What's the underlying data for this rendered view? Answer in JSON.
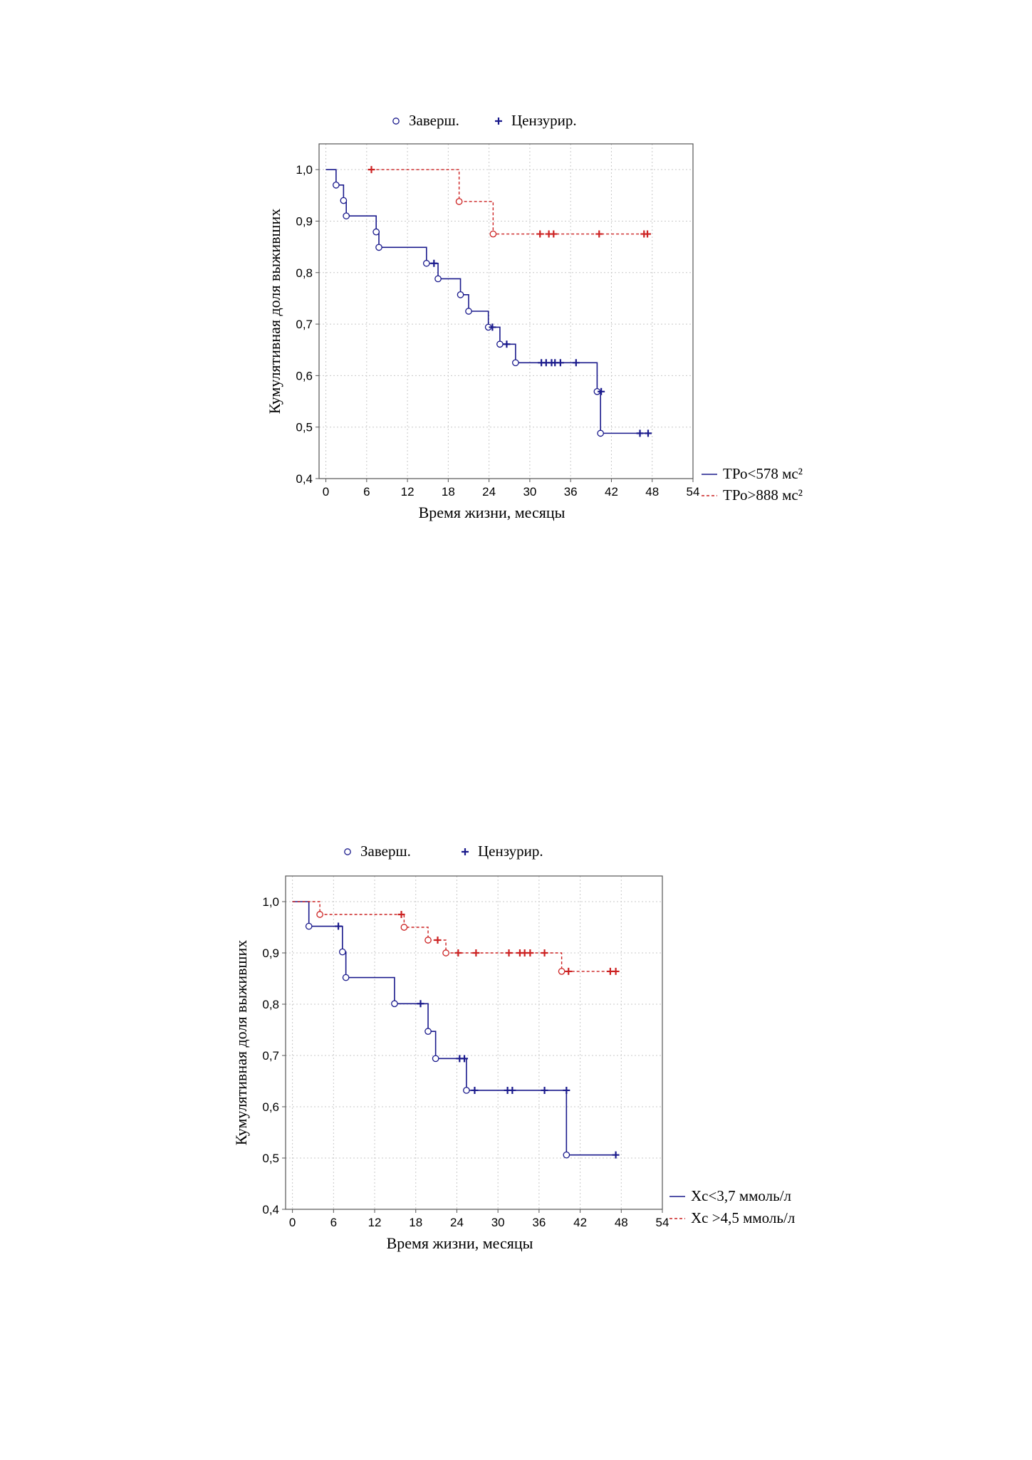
{
  "chart_data": [
    {
      "type": "line",
      "subtype": "kaplan-meier-step",
      "title": "",
      "xlabel": "Время жизни, месяцы",
      "ylabel": "Кумулятивная доля выживших",
      "xlim": [
        -1,
        54
      ],
      "ylim": [
        0.4,
        1.05
      ],
      "xticks": [
        0,
        6,
        12,
        18,
        24,
        30,
        36,
        42,
        48,
        54
      ],
      "xtick_labels": [
        "0",
        "6",
        "12",
        "18",
        "24",
        "30",
        "36",
        "42",
        "48",
        "54"
      ],
      "yticks": [
        0.4,
        0.5,
        0.6,
        0.7,
        0.8,
        0.9,
        1.0
      ],
      "ytick_labels": [
        "0,4",
        "0,5",
        "0,6",
        "0,7",
        "0,8",
        "0,9",
        "1,0"
      ],
      "grid": true,
      "marker_key": {
        "completed_label": "Заверш.",
        "censored_label": "Цензурир.",
        "placement": "top-center"
      },
      "legend_placement": "bottom-right",
      "series": [
        {
          "name": "ТРо<578 мс²",
          "color": "#1a1a8c",
          "line_style": "solid",
          "steps": [
            [
              0,
              1.0
            ],
            [
              1.5,
              0.97
            ],
            [
              2.6,
              0.94
            ],
            [
              3.0,
              0.91
            ],
            [
              7.4,
              0.879
            ],
            [
              7.8,
              0.849
            ],
            [
              14.8,
              0.818
            ],
            [
              16.5,
              0.788
            ],
            [
              19.8,
              0.757
            ],
            [
              21.0,
              0.725
            ],
            [
              23.9,
              0.694
            ],
            [
              25.6,
              0.661
            ],
            [
              27.9,
              0.625
            ],
            [
              39.9,
              0.569
            ],
            [
              40.4,
              0.488
            ],
            [
              47.6,
              0.488
            ]
          ],
          "events": [
            [
              1.5,
              0.97
            ],
            [
              2.6,
              0.94
            ],
            [
              3.0,
              0.91
            ],
            [
              7.4,
              0.879
            ],
            [
              7.8,
              0.849
            ],
            [
              14.8,
              0.818
            ],
            [
              16.5,
              0.788
            ],
            [
              19.8,
              0.757
            ],
            [
              21.0,
              0.725
            ],
            [
              23.9,
              0.694
            ],
            [
              25.6,
              0.661
            ],
            [
              27.9,
              0.625
            ],
            [
              39.9,
              0.569
            ],
            [
              40.4,
              0.488
            ]
          ],
          "censored": [
            [
              15.9,
              0.818
            ],
            [
              24.5,
              0.694
            ],
            [
              26.6,
              0.661
            ],
            [
              31.7,
              0.625
            ],
            [
              32.4,
              0.625
            ],
            [
              33.2,
              0.625
            ],
            [
              33.7,
              0.625
            ],
            [
              34.5,
              0.625
            ],
            [
              36.8,
              0.625
            ],
            [
              40.5,
              0.569
            ],
            [
              46.2,
              0.488
            ],
            [
              47.4,
              0.488
            ]
          ]
        },
        {
          "name": "ТРо>888 мс²",
          "color": "#cc2222",
          "line_style": "dashed",
          "steps": [
            [
              6.7,
              1.0
            ],
            [
              19.6,
              0.938
            ],
            [
              24.6,
              0.875
            ],
            [
              47.6,
              0.875
            ]
          ],
          "events": [
            [
              19.6,
              0.938
            ],
            [
              24.6,
              0.875
            ]
          ],
          "censored": [
            [
              6.7,
              1.0
            ],
            [
              31.5,
              0.875
            ],
            [
              32.8,
              0.875
            ],
            [
              33.5,
              0.875
            ],
            [
              40.2,
              0.875
            ],
            [
              46.8,
              0.875
            ],
            [
              47.3,
              0.875
            ]
          ]
        }
      ]
    },
    {
      "type": "line",
      "subtype": "kaplan-meier-step",
      "title": "",
      "xlabel": "Время жизни, месяцы",
      "ylabel": "Кумулятивная доля выживших",
      "xlim": [
        -1,
        54
      ],
      "ylim": [
        0.4,
        1.05
      ],
      "xticks": [
        0,
        6,
        12,
        18,
        24,
        30,
        36,
        42,
        48,
        54
      ],
      "xtick_labels": [
        "0",
        "6",
        "12",
        "18",
        "24",
        "30",
        "36",
        "42",
        "48",
        "54"
      ],
      "yticks": [
        0.4,
        0.5,
        0.6,
        0.7,
        0.8,
        0.9,
        1.0
      ],
      "ytick_labels": [
        "0,4",
        "0,5",
        "0,6",
        "0,7",
        "0,8",
        "0,9",
        "1,0"
      ],
      "grid": true,
      "marker_key": {
        "completed_label": "Заверш.",
        "censored_label": "Цензурир.",
        "placement": "top-center"
      },
      "legend_placement": "bottom-right",
      "series": [
        {
          "name": "Хс<3,7 ммоль/л",
          "color": "#1a1a8c",
          "line_style": "solid",
          "steps": [
            [
              0,
              1.0
            ],
            [
              2.4,
              0.952
            ],
            [
              7.3,
              0.902
            ],
            [
              7.8,
              0.852
            ],
            [
              14.9,
              0.801
            ],
            [
              19.8,
              0.747
            ],
            [
              20.9,
              0.694
            ],
            [
              25.4,
              0.632
            ],
            [
              40.0,
              0.506
            ],
            [
              47.6,
              0.506
            ]
          ],
          "events": [
            [
              2.4,
              0.952
            ],
            [
              7.3,
              0.902
            ],
            [
              7.8,
              0.852
            ],
            [
              14.9,
              0.801
            ],
            [
              19.8,
              0.747
            ],
            [
              20.9,
              0.694
            ],
            [
              25.4,
              0.632
            ],
            [
              40.0,
              0.506
            ]
          ],
          "censored": [
            [
              6.7,
              0.952
            ],
            [
              18.7,
              0.801
            ],
            [
              24.4,
              0.694
            ],
            [
              25.1,
              0.694
            ],
            [
              26.6,
              0.632
            ],
            [
              31.4,
              0.632
            ],
            [
              32.1,
              0.632
            ],
            [
              36.8,
              0.632
            ],
            [
              40.0,
              0.632
            ],
            [
              47.2,
              0.506
            ]
          ]
        },
        {
          "name": "Хс >4,5 ммоль/л",
          "color": "#cc2222",
          "line_style": "dashed",
          "steps": [
            [
              0,
              1.0
            ],
            [
              4.0,
              0.975
            ],
            [
              16.3,
              0.95
            ],
            [
              19.8,
              0.925
            ],
            [
              22.4,
              0.9
            ],
            [
              39.3,
              0.864
            ],
            [
              47.6,
              0.864
            ]
          ],
          "events": [
            [
              4.0,
              0.975
            ],
            [
              16.3,
              0.95
            ],
            [
              19.8,
              0.925
            ],
            [
              22.4,
              0.9
            ],
            [
              39.3,
              0.864
            ]
          ],
          "censored": [
            [
              15.9,
              0.975
            ],
            [
              21.2,
              0.925
            ],
            [
              24.2,
              0.9
            ],
            [
              26.8,
              0.9
            ],
            [
              31.6,
              0.9
            ],
            [
              33.2,
              0.9
            ],
            [
              33.9,
              0.9
            ],
            [
              34.7,
              0.9
            ],
            [
              36.8,
              0.9
            ],
            [
              40.3,
              0.864
            ],
            [
              46.4,
              0.864
            ],
            [
              47.2,
              0.864
            ]
          ]
        }
      ]
    }
  ]
}
